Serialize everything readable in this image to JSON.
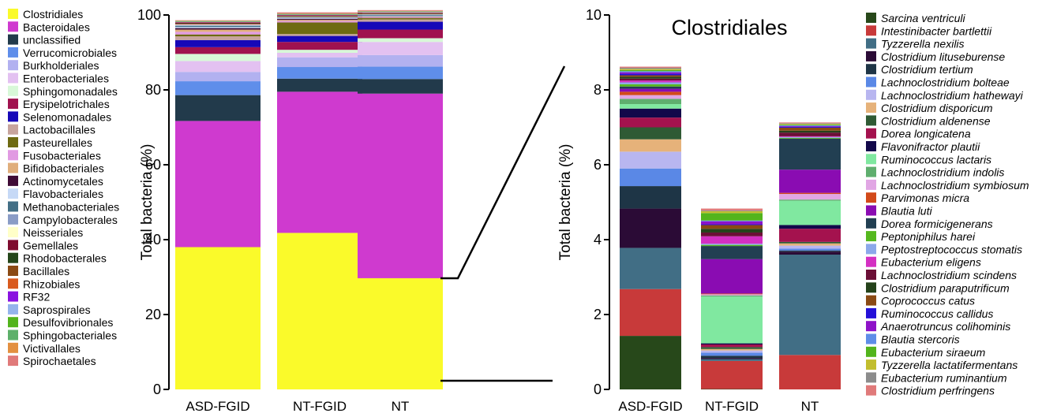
{
  "chart_data": [
    {
      "type": "bar",
      "stacked": true,
      "title": "",
      "ylabel": "Total bacteria (%)",
      "xlabel": "",
      "ylim": [
        0,
        100
      ],
      "yticks": [
        0,
        20,
        40,
        60,
        80,
        100
      ],
      "categories": [
        "ASD-FGID",
        "NT-FGID",
        "NT"
      ],
      "legend_position": "left",
      "series": [
        {
          "name": "Clostridiales",
          "color": "#FAFA2A",
          "values": [
            38.0,
            41.8,
            29.7
          ]
        },
        {
          "name": "Bacteroidales",
          "color": "#CF3ACF",
          "values": [
            33.7,
            37.7,
            49.3
          ]
        },
        {
          "name": "unclassified",
          "color": "#223A4B",
          "values": [
            6.9,
            3.5,
            3.9
          ]
        },
        {
          "name": "Verrucomicrobiales",
          "color": "#5F8EEA",
          "values": [
            3.7,
            3.1,
            3.3
          ]
        },
        {
          "name": "Burkholderiales",
          "color": "#B2B1F0",
          "values": [
            2.5,
            2.6,
            3.1
          ]
        },
        {
          "name": "Enterobacteriales",
          "color": "#E3C1F1",
          "values": [
            2.9,
            1.2,
            3.5
          ]
        },
        {
          "name": "Sphingomonadales",
          "color": "#D8F8D8",
          "values": [
            1.9,
            0.8,
            1.0
          ]
        },
        {
          "name": "Erysipelotrichales",
          "color": "#A0124F",
          "values": [
            1.8,
            2.1,
            2.3
          ]
        },
        {
          "name": "Selenomonadales",
          "color": "#1608B8",
          "values": [
            1.9,
            1.6,
            2.1
          ]
        },
        {
          "name": "Lactobacillales",
          "color": "#C7A49D",
          "values": [
            1.0,
            0.5,
            0.6
          ]
        },
        {
          "name": "Pasteurellales",
          "color": "#6E6A12",
          "values": [
            0.5,
            3.1,
            0.4
          ]
        },
        {
          "name": "Fusobacteriales",
          "color": "#E19AE2",
          "values": [
            0.7,
            0.4,
            0.2
          ]
        },
        {
          "name": "Bifidobacteriales",
          "color": "#E0AE7C",
          "values": [
            0.6,
            0.3,
            0.1
          ]
        },
        {
          "name": "Actinomycetales",
          "color": "#3F0B36",
          "values": [
            0.4,
            0.3,
            0.1
          ]
        },
        {
          "name": "Flavobacteriales",
          "color": "#C6D9F6",
          "values": [
            0.3,
            0.2,
            0.2
          ]
        },
        {
          "name": "Methanobacteriales",
          "color": "#436F86",
          "values": [
            0.3,
            0.1,
            0.2
          ]
        },
        {
          "name": "Campylobacterales",
          "color": "#8A9CC6",
          "values": [
            0.2,
            0.1,
            0.1
          ]
        },
        {
          "name": "Neisseriales",
          "color": "#FFFFC8",
          "values": [
            0.2,
            0.1,
            0.1
          ]
        },
        {
          "name": "Gemellales",
          "color": "#7F0C2F",
          "values": [
            0.2,
            0.1,
            0.1
          ]
        },
        {
          "name": "Rhodobacterales",
          "color": "#24461A",
          "values": [
            0.1,
            0.1,
            0.1
          ]
        },
        {
          "name": "Bacillales",
          "color": "#8B4A14",
          "values": [
            0.1,
            0.1,
            0.1
          ]
        },
        {
          "name": "Rhizobiales",
          "color": "#D95A1E",
          "values": [
            0.1,
            0.1,
            0.1
          ]
        },
        {
          "name": "RF32",
          "color": "#8A13E0",
          "values": [
            0.1,
            0.1,
            0.1
          ]
        },
        {
          "name": "Saprospirales",
          "color": "#94B4EC",
          "values": [
            0.1,
            0.1,
            0.1
          ]
        },
        {
          "name": "Desulfovibrionales",
          "color": "#52B41C",
          "values": [
            0.1,
            0.1,
            0.1
          ]
        },
        {
          "name": "Sphingobacteriales",
          "color": "#5DB06A",
          "values": [
            0.1,
            0.1,
            0.1
          ]
        },
        {
          "name": "Victivallales",
          "color": "#E39040",
          "values": [
            0.1,
            0.1,
            0.1
          ]
        },
        {
          "name": "Spirochaetales",
          "color": "#E07A7A",
          "values": [
            0.1,
            0.3,
            0.2
          ]
        }
      ]
    },
    {
      "type": "bar",
      "stacked": true,
      "title": "Clostridiales",
      "ylabel": "Total bacteria (%)",
      "xlabel": "",
      "ylim": [
        0,
        10
      ],
      "yticks": [
        0,
        2,
        4,
        6,
        8,
        10
      ],
      "categories": [
        "ASD-FGID",
        "NT-FGID",
        "NT"
      ],
      "legend_position": "right",
      "series": [
        {
          "name": "Sarcina ventriculi",
          "color": "#27481A",
          "values": [
            1.43,
            0.01,
            0.0
          ]
        },
        {
          "name": "Intestinibacter bartlettii",
          "color": "#C83A3A",
          "values": [
            1.25,
            0.75,
            0.92
          ]
        },
        {
          "name": "Tyzzerella nexilis",
          "color": "#416E85",
          "values": [
            1.1,
            0.05,
            2.68
          ]
        },
        {
          "name": "Clostridium lituseburense",
          "color": "#2B0B36",
          "values": [
            1.05,
            0.03,
            0.08
          ]
        },
        {
          "name": "Clostridium tertium",
          "color": "#1E3546",
          "values": [
            0.6,
            0.06,
            0.03
          ]
        },
        {
          "name": "Lachnoclostridium bolteae",
          "color": "#5A88E6",
          "values": [
            0.47,
            0.08,
            0.05
          ]
        },
        {
          "name": "Lachnoclostridium hathewayi",
          "color": "#B8B6F0",
          "values": [
            0.45,
            0.06,
            0.08
          ]
        },
        {
          "name": "Clostridium disporicum",
          "color": "#E6B27A",
          "values": [
            0.33,
            0.04,
            0.06
          ]
        },
        {
          "name": "Clostridium aldenense",
          "color": "#2F5A34",
          "values": [
            0.32,
            0.05,
            0.04
          ]
        },
        {
          "name": "Dorea longicatena",
          "color": "#A4124E",
          "values": [
            0.26,
            0.07,
            0.35
          ]
        },
        {
          "name": "Flavonifractor plautii",
          "color": "#12084A",
          "values": [
            0.24,
            0.03,
            0.1
          ]
        },
        {
          "name": "Ruminococcus lactaris",
          "color": "#80E8A0",
          "values": [
            0.12,
            1.25,
            0.65
          ]
        },
        {
          "name": "Lachnoclostridium indolis",
          "color": "#5FAE6E",
          "values": [
            0.14,
            0.03,
            0.03
          ]
        },
        {
          "name": "Lachnoclostridium symbiosum",
          "color": "#E1A6E4",
          "values": [
            0.1,
            0.03,
            0.15
          ]
        },
        {
          "name": "Parvimonas micra",
          "color": "#D24A1A",
          "values": [
            0.09,
            0.02,
            0.03
          ]
        },
        {
          "name": "Blautia luti",
          "color": "#8A0CB2",
          "values": [
            0.08,
            0.92,
            0.62
          ]
        },
        {
          "name": "Dorea formicigenerans",
          "color": "#223F52",
          "values": [
            0.06,
            0.35,
            0.83
          ]
        },
        {
          "name": "Peptoniphilus harei",
          "color": "#55B81E",
          "values": [
            0.06,
            0.03,
            0.02
          ]
        },
        {
          "name": "Peptostreptococcus stomatis",
          "color": "#8CA8EA",
          "values": [
            0.05,
            0.03,
            0.02
          ]
        },
        {
          "name": "Eubacterium eligens",
          "color": "#D42FC2",
          "values": [
            0.05,
            0.2,
            0.02
          ]
        },
        {
          "name": "Lachnoclostridium scindens",
          "color": "#6B0F36",
          "values": [
            0.05,
            0.1,
            0.1
          ]
        },
        {
          "name": "Clostridium paraputrificum",
          "color": "#24421A",
          "values": [
            0.05,
            0.1,
            0.05
          ]
        },
        {
          "name": "Coprococcus catus",
          "color": "#8A4A14",
          "values": [
            0.04,
            0.1,
            0.08
          ]
        },
        {
          "name": "Ruminococcus callidus",
          "color": "#2410D8",
          "values": [
            0.04,
            0.02,
            0.02
          ]
        },
        {
          "name": "Anaerotruncus colihominis",
          "color": "#8E12C8",
          "values": [
            0.04,
            0.08,
            0.02
          ]
        },
        {
          "name": "Blautia stercoris",
          "color": "#5E8DE8",
          "values": [
            0.03,
            0.02,
            0.02
          ]
        },
        {
          "name": "Eubacterium siraeum",
          "color": "#52B41C",
          "values": [
            0.03,
            0.2,
            0.02
          ]
        },
        {
          "name": "Tyzzerella lactatifermentans",
          "color": "#C2BE2E",
          "values": [
            0.03,
            0.05,
            0.02
          ]
        },
        {
          "name": "Eubacterium ruminantium",
          "color": "#8C8C8C",
          "values": [
            0.03,
            0.02,
            0.02
          ]
        },
        {
          "name": "Clostridium perfringens",
          "color": "#E07A7A",
          "values": [
            0.03,
            0.05,
            0.02
          ]
        }
      ]
    }
  ]
}
